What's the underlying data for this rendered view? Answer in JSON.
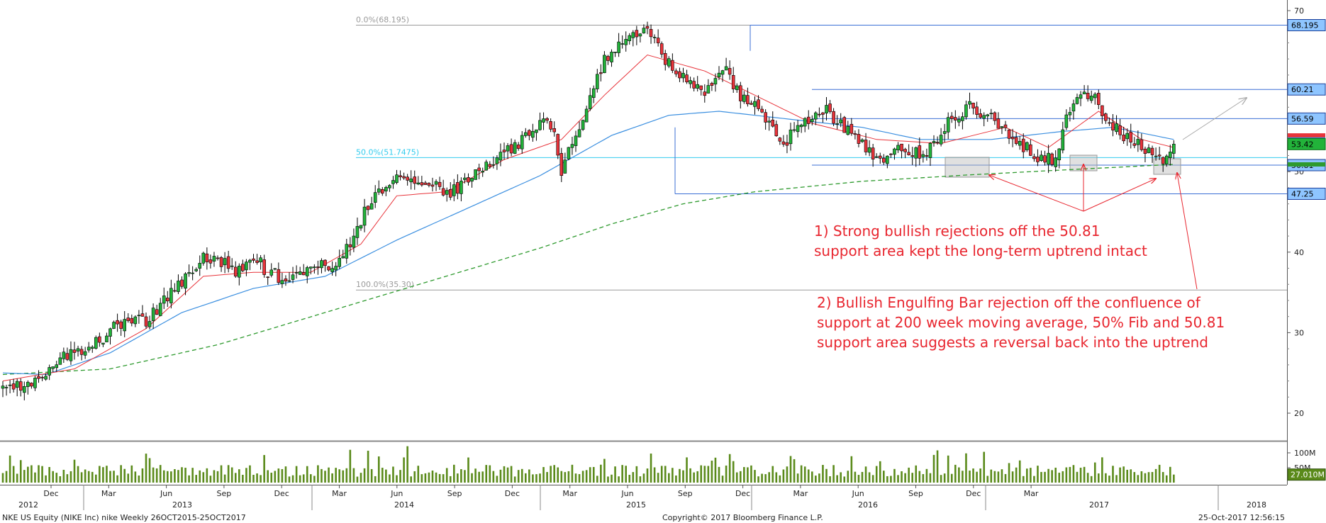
{
  "chart_data": {
    "type": "candlestick",
    "ticker": "NKE US Equity (NIKE Inc) nike  Weekly 26OCT2015-25OCT2017",
    "copyright": "Copyright© 2017 Bloomberg Finance L.P.",
    "timestamp": "25-Oct-2017 12:56:15",
    "price_axis": {
      "ticks": [
        20,
        30,
        40,
        50,
        60,
        70
      ],
      "labels": [
        "20",
        "30",
        "40",
        "50",
        "60",
        "70"
      ],
      "range": [
        17,
        71
      ]
    },
    "volume_axis": {
      "labels": [
        "100M",
        "50M"
      ],
      "last_volume": "27.010M"
    },
    "x_axis": {
      "months": [
        "Dec",
        "Mar",
        "Jun",
        "Sep",
        "Dec",
        "Mar",
        "Jun",
        "Sep",
        "Dec",
        "Mar",
        "Jun",
        "Sep",
        "Dec",
        "Mar",
        "Jun",
        "Sep",
        "Dec",
        "Mar"
      ],
      "years": [
        "2012",
        "2013",
        "2014",
        "2015",
        "2016",
        "2017",
        "2018"
      ]
    },
    "fib_levels": [
      {
        "label": "0.0%(68.195)",
        "price": 68.195
      },
      {
        "label": "50.0%(51.7475)",
        "price": 51.7475
      },
      {
        "label": "100.0%(35.30)",
        "price": 35.3
      }
    ],
    "horizontal_levels": [
      {
        "label": "68.195",
        "price": 68.195
      },
      {
        "label": "60.21",
        "price": 60.21
      },
      {
        "label": "56.59",
        "price": 56.59
      },
      {
        "label": "50.81",
        "price": 50.81
      },
      {
        "label": "47.25",
        "price": 47.25
      }
    ],
    "last_price": "53.42",
    "annotations": [
      "1) Strong bullish rejections off the 50.81",
      "support area kept the long-term uptrend intact",
      "2) Bullish Engulfing Bar rejection off the confluence of",
      "support at 200 week moving average, 50% Fib and 50.81",
      "support area suggests a reversal back into the uptrend"
    ],
    "price_anchors": [
      [
        0,
        23.8
      ],
      [
        8,
        23.5
      ],
      [
        16,
        27.0
      ],
      [
        24,
        28.0
      ],
      [
        32,
        31.0
      ],
      [
        40,
        31.5
      ],
      [
        48,
        35.5
      ],
      [
        56,
        39.5
      ],
      [
        62,
        38.5
      ],
      [
        66,
        37.5
      ],
      [
        70,
        39.5
      ],
      [
        74,
        37.5
      ],
      [
        80,
        36.5
      ],
      [
        86,
        38.5
      ],
      [
        94,
        38.5
      ],
      [
        102,
        46.0
      ],
      [
        110,
        49.5
      ],
      [
        118,
        49.0
      ],
      [
        124,
        47.0
      ],
      [
        134,
        50.5
      ],
      [
        144,
        53.5
      ],
      [
        150,
        56.5
      ],
      [
        154,
        55.0
      ],
      [
        156,
        50.0
      ],
      [
        162,
        57.0
      ],
      [
        168,
        64.0
      ],
      [
        174,
        66.5
      ],
      [
        180,
        67.5
      ],
      [
        184,
        64.5
      ],
      [
        190,
        61.5
      ],
      [
        196,
        59.5
      ],
      [
        202,
        62.5
      ],
      [
        206,
        59.5
      ],
      [
        212,
        57.5
      ],
      [
        218,
        53.5
      ],
      [
        224,
        56.5
      ],
      [
        230,
        57.5
      ],
      [
        238,
        54.5
      ],
      [
        244,
        51.5
      ],
      [
        250,
        52.5
      ],
      [
        258,
        52.0
      ],
      [
        264,
        56.5
      ],
      [
        270,
        58.0
      ],
      [
        276,
        56.5
      ],
      [
        282,
        54.5
      ],
      [
        288,
        52.0
      ],
      [
        294,
        51.5
      ],
      [
        298,
        58.0
      ],
      [
        304,
        60.0
      ],
      [
        308,
        56.5
      ],
      [
        314,
        54.0
      ],
      [
        320,
        52.5
      ],
      [
        324,
        51.5
      ],
      [
        327,
        53.4
      ]
    ],
    "ma_short_anchors": [
      [
        0,
        24.0
      ],
      [
        20,
        25.5
      ],
      [
        40,
        30.5
      ],
      [
        56,
        37.0
      ],
      [
        70,
        37.5
      ],
      [
        86,
        37.5
      ],
      [
        100,
        41.0
      ],
      [
        110,
        47.0
      ],
      [
        124,
        47.5
      ],
      [
        140,
        51.5
      ],
      [
        156,
        54.0
      ],
      [
        168,
        59.5
      ],
      [
        180,
        64.5
      ],
      [
        196,
        62.5
      ],
      [
        210,
        59.5
      ],
      [
        226,
        56.0
      ],
      [
        244,
        54.0
      ],
      [
        262,
        53.5
      ],
      [
        280,
        55.5
      ],
      [
        292,
        53.0
      ],
      [
        306,
        57.5
      ],
      [
        318,
        54.0
      ],
      [
        327,
        53.0
      ]
    ],
    "ma_mid_anchors": [
      [
        0,
        25.0
      ],
      [
        12,
        24.8
      ],
      [
        30,
        27.5
      ],
      [
        50,
        32.5
      ],
      [
        70,
        35.5
      ],
      [
        90,
        37.0
      ],
      [
        110,
        41.5
      ],
      [
        130,
        45.5
      ],
      [
        150,
        49.5
      ],
      [
        170,
        54.5
      ],
      [
        186,
        57.0
      ],
      [
        200,
        57.5
      ],
      [
        220,
        56.5
      ],
      [
        240,
        55.5
      ],
      [
        256,
        54.0
      ],
      [
        276,
        54.0
      ],
      [
        296,
        55.0
      ],
      [
        310,
        55.5
      ],
      [
        327,
        54.0
      ]
    ],
    "ma_long_anchors": [
      [
        0,
        24.8
      ],
      [
        30,
        25.5
      ],
      [
        60,
        28.5
      ],
      [
        90,
        32.5
      ],
      [
        120,
        36.5
      ],
      [
        150,
        40.5
      ],
      [
        170,
        43.5
      ],
      [
        190,
        46.0
      ],
      [
        210,
        47.5
      ],
      [
        240,
        48.8
      ],
      [
        270,
        49.6
      ],
      [
        300,
        50.3
      ],
      [
        327,
        50.9
      ]
    ]
  }
}
